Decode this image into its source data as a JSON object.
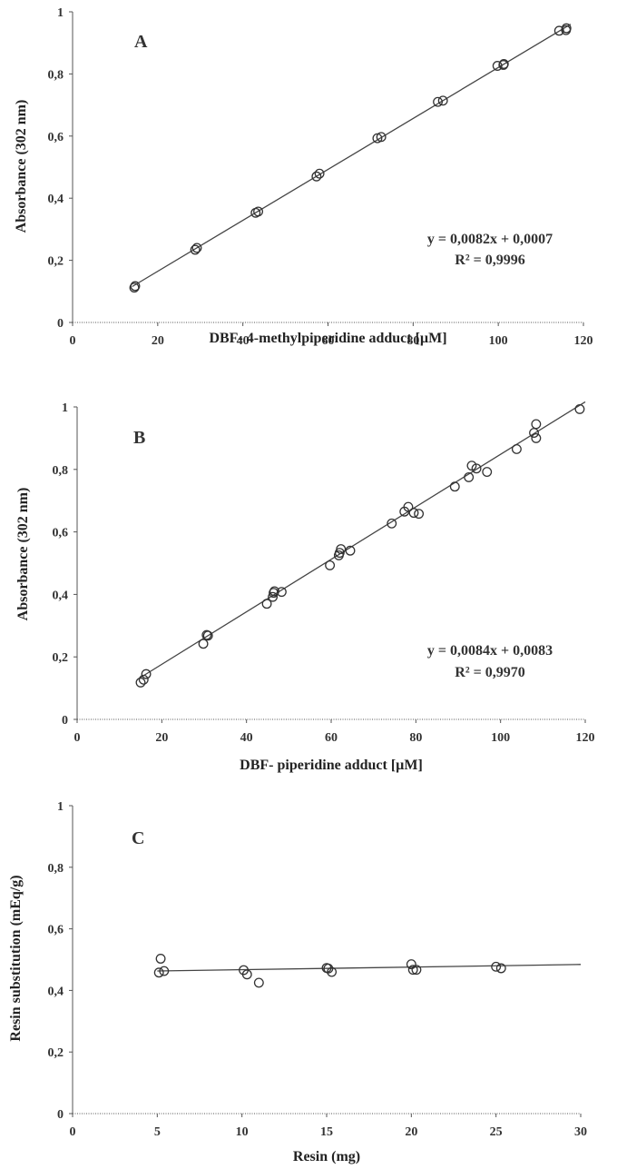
{
  "chart_data": [
    {
      "type": "scatter",
      "panel_label": "A",
      "xlabel": "DBF- 4-methylpiperidine  adduct  [µM]",
      "ylabel": "Absorbance  (302 nm)",
      "xlim": [
        0,
        120
      ],
      "ylim": [
        0,
        1.0
      ],
      "x_ticks": [
        0,
        20,
        40,
        60,
        80,
        100,
        120
      ],
      "y_ticks": [
        0,
        0.2,
        0.4,
        0.6,
        0.8,
        1.0
      ],
      "x_tick_labels": [
        "0",
        "20",
        "40",
        "60",
        "80",
        "100",
        "120"
      ],
      "y_tick_labels": [
        "0",
        "0,2",
        "0,4",
        "0,6",
        "0,8",
        "1"
      ],
      "grid": false,
      "equation": "y = 0,0082x + 0,0007",
      "r_squared": "R² = 0,9996",
      "fit": {
        "slope": 0.0082,
        "intercept": 0.0007,
        "x_range": [
          14,
          117
        ]
      },
      "points": [
        [
          14.5,
          0.112
        ],
        [
          14.7,
          0.117
        ],
        [
          28.8,
          0.234
        ],
        [
          29.2,
          0.24
        ],
        [
          43.0,
          0.353
        ],
        [
          43.6,
          0.357
        ],
        [
          57.3,
          0.47
        ],
        [
          58.0,
          0.479
        ],
        [
          71.6,
          0.593
        ],
        [
          72.5,
          0.597
        ],
        [
          85.8,
          0.71
        ],
        [
          87.0,
          0.714
        ],
        [
          99.8,
          0.826
        ],
        [
          101.2,
          0.829
        ],
        [
          101.3,
          0.832
        ],
        [
          114.3,
          0.939
        ],
        [
          115.9,
          0.941
        ],
        [
          116.0,
          0.947
        ]
      ]
    },
    {
      "type": "scatter",
      "panel_label": "B",
      "xlabel": "DBF- piperidine  adduct  [µM]",
      "ylabel": "Absorbance   (302 nm)",
      "xlim": [
        0,
        120
      ],
      "ylim": [
        0,
        1.0
      ],
      "x_ticks": [
        0,
        20,
        40,
        60,
        80,
        100,
        120
      ],
      "y_ticks": [
        0,
        0.2,
        0.4,
        0.6,
        0.8,
        1.0
      ],
      "x_tick_labels": [
        "0",
        "20",
        "40",
        "60",
        "80",
        "100",
        "120"
      ],
      "y_tick_labels": [
        "0",
        "0,2",
        "0,4",
        "0,6",
        "0,8",
        "1"
      ],
      "grid": false,
      "equation": "y = 0,0084x + 0,0083",
      "r_squared": "R² = 0,9970",
      "fit": {
        "slope": 0.0084,
        "intercept": 0.0083,
        "x_range": [
          14.5,
          120
        ]
      },
      "points": [
        [
          15.0,
          0.118
        ],
        [
          15.7,
          0.127
        ],
        [
          16.3,
          0.145
        ],
        [
          29.8,
          0.242
        ],
        [
          30.6,
          0.27
        ],
        [
          30.9,
          0.268
        ],
        [
          44.8,
          0.37
        ],
        [
          46.2,
          0.392
        ],
        [
          46.4,
          0.405
        ],
        [
          46.6,
          0.41
        ],
        [
          48.3,
          0.408
        ],
        [
          59.7,
          0.493
        ],
        [
          61.8,
          0.525
        ],
        [
          62.0,
          0.533
        ],
        [
          62.3,
          0.545
        ],
        [
          64.5,
          0.54
        ],
        [
          74.3,
          0.627
        ],
        [
          77.3,
          0.665
        ],
        [
          78.2,
          0.68
        ],
        [
          79.5,
          0.661
        ],
        [
          80.7,
          0.658
        ],
        [
          89.2,
          0.745
        ],
        [
          92.5,
          0.775
        ],
        [
          93.2,
          0.812
        ],
        [
          94.3,
          0.803
        ],
        [
          96.8,
          0.792
        ],
        [
          103.8,
          0.865
        ],
        [
          107.9,
          0.917
        ],
        [
          108.4,
          0.945
        ],
        [
          108.4,
          0.9
        ],
        [
          118.7,
          0.993
        ]
      ]
    },
    {
      "type": "scatter",
      "panel_label": "C",
      "xlabel": "Resin  (mg)",
      "ylabel": "Resin substitution  (mEq/g)",
      "xlim": [
        0,
        30
      ],
      "ylim": [
        0,
        1.0
      ],
      "x_ticks": [
        0,
        5,
        10,
        15,
        20,
        25,
        30
      ],
      "y_ticks": [
        0,
        0.2,
        0.4,
        0.6,
        0.8,
        1.0
      ],
      "x_tick_labels": [
        "0",
        "5",
        "10",
        "15",
        "20",
        "25",
        "30"
      ],
      "y_tick_labels": [
        "0",
        "0,2",
        "0,4",
        "0,6",
        "0,8",
        "1"
      ],
      "grid": false,
      "fit": {
        "slope": 0.00085,
        "intercept": 0.4588,
        "x_range": [
          5,
          30
        ]
      },
      "points": [
        [
          5.1,
          0.458
        ],
        [
          5.2,
          0.503
        ],
        [
          5.4,
          0.463
        ],
        [
          10.1,
          0.466
        ],
        [
          10.3,
          0.452
        ],
        [
          11.0,
          0.425
        ],
        [
          15.0,
          0.473
        ],
        [
          15.1,
          0.471
        ],
        [
          15.3,
          0.46
        ],
        [
          20.0,
          0.485
        ],
        [
          20.1,
          0.467
        ],
        [
          20.3,
          0.467
        ],
        [
          25.0,
          0.477
        ],
        [
          25.3,
          0.472
        ]
      ]
    }
  ]
}
